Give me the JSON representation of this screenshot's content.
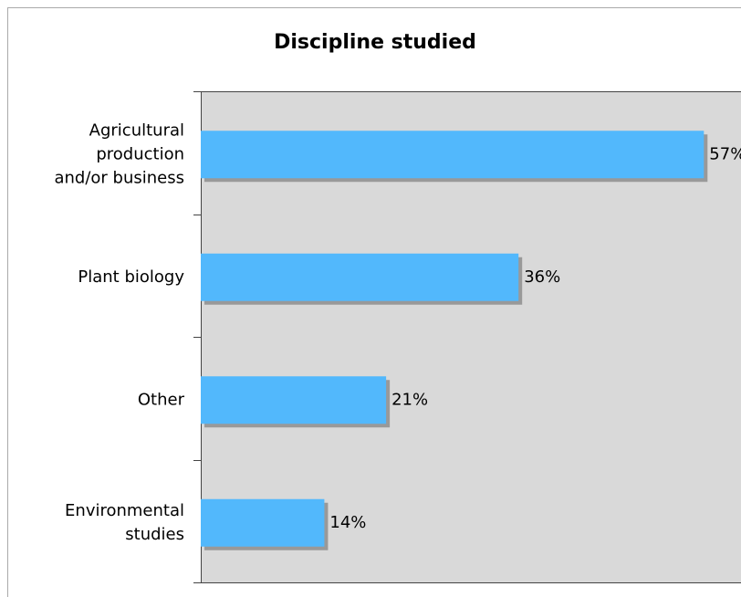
{
  "chart_data": {
    "type": "bar",
    "orientation": "horizontal",
    "title": "Discipline studied",
    "categories": [
      "Agricultural\nproduction\nand/or business",
      "Plant biology",
      "Other",
      "Environmental\nstudies"
    ],
    "values": [
      57,
      36,
      21,
      14
    ],
    "value_labels": [
      "57%",
      "36%",
      "21%",
      "14%"
    ],
    "color": "#52b8fc",
    "xlim": [
      0,
      61
    ]
  }
}
